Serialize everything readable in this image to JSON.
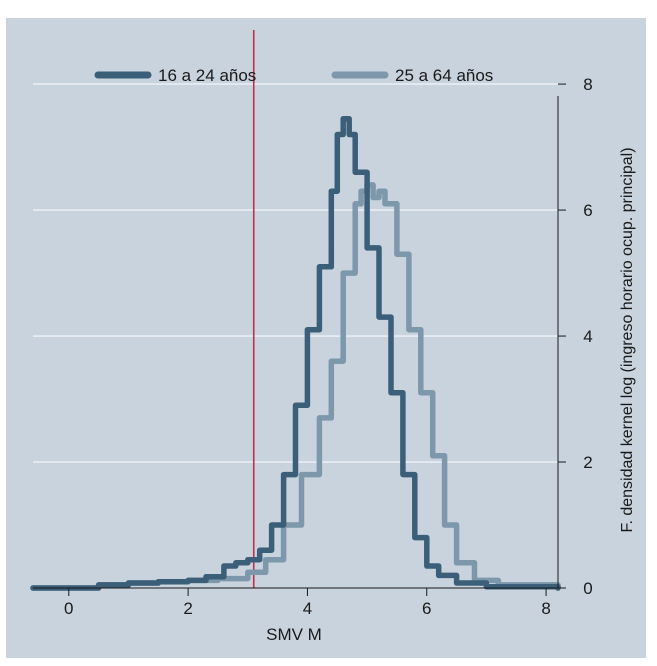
{
  "chart_data": {
    "type": "line",
    "xlabel": "SMV M",
    "ylabel": "F. densidad  kernel log (ingreso horario ocup. principal)",
    "xlim": [
      -0.6,
      8.2
    ],
    "ylim": [
      0,
      8.7
    ],
    "xticks": [
      0,
      2,
      4,
      6,
      8
    ],
    "yticks": [
      0,
      2,
      4,
      6,
      8
    ],
    "y_axis_side": "right",
    "grid": "horizontal",
    "legend_position": "top",
    "reference_line": {
      "x": 3.1,
      "color": "#c0304a"
    },
    "colors": {
      "background": "#c8d3dd",
      "grid": "#e8eef3"
    },
    "series": [
      {
        "name": "16 a 24 años",
        "color": "#3b5f78",
        "x": [
          -0.6,
          0.5,
          1.0,
          1.5,
          2.0,
          2.3,
          2.6,
          2.8,
          3.0,
          3.2,
          3.4,
          3.6,
          3.8,
          4.0,
          4.2,
          4.4,
          4.5,
          4.6,
          4.7,
          4.8,
          5.0,
          5.2,
          5.4,
          5.6,
          5.8,
          6.0,
          6.2,
          6.5,
          7.0,
          8.2
        ],
        "y": [
          0.0,
          0.05,
          0.08,
          0.1,
          0.12,
          0.18,
          0.35,
          0.4,
          0.45,
          0.6,
          1.0,
          1.8,
          2.9,
          4.1,
          5.1,
          6.3,
          7.2,
          7.45,
          7.2,
          6.6,
          5.4,
          4.3,
          3.1,
          1.8,
          0.8,
          0.35,
          0.2,
          0.08,
          0.02,
          0.0
        ]
      },
      {
        "name": "25 a 64 años",
        "color": "#7d97ab",
        "x": [
          -0.6,
          0.5,
          1.0,
          1.5,
          2.0,
          2.5,
          3.0,
          3.3,
          3.6,
          3.9,
          4.2,
          4.4,
          4.6,
          4.8,
          4.9,
          5.0,
          5.1,
          5.2,
          5.3,
          5.5,
          5.7,
          5.9,
          6.1,
          6.3,
          6.5,
          6.8,
          7.2,
          8.2
        ],
        "y": [
          0.0,
          0.05,
          0.08,
          0.1,
          0.12,
          0.15,
          0.25,
          0.45,
          1.0,
          1.8,
          2.7,
          3.6,
          5.0,
          6.1,
          6.3,
          6.4,
          6.2,
          6.3,
          6.1,
          5.3,
          4.1,
          3.1,
          2.1,
          1.0,
          0.4,
          0.12,
          0.05,
          0.0
        ]
      }
    ]
  }
}
